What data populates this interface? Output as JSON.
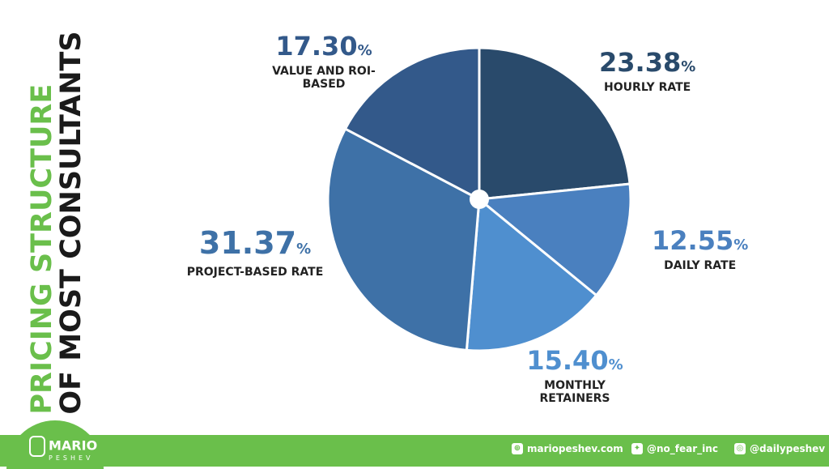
{
  "title": {
    "line1": "PRICING STRUCTURE",
    "line2": "OF MOST CONSULTANTS"
  },
  "chart_data": {
    "type": "pie",
    "start": "12 o'clock, clockwise",
    "slices": [
      {
        "label": "HOURLY RATE",
        "value": 23.38,
        "display": "23.38",
        "color": "#294a6b"
      },
      {
        "label": "DAILY RATE",
        "value": 12.55,
        "display": "12.55",
        "color": "#4a80bf"
      },
      {
        "label": "MONTHLY RETAINERS",
        "value": 15.4,
        "display": "15.40",
        "color": "#4f8fcf"
      },
      {
        "label": "PROJECT-BASED RATE",
        "value": 31.37,
        "display": "31.37",
        "color": "#3e71a7"
      },
      {
        "label": "VALUE AND ROI-BASED",
        "value": 17.3,
        "display": "17.30",
        "color": "#33598a"
      }
    ],
    "unit": "%"
  },
  "footer": {
    "brand": "MARIO",
    "brand_sub": "PESHEV",
    "website": "mariopeshev.com",
    "twitter": "@no_fear_inc",
    "instagram": "@dailypeshev",
    "color": "#6abf4b"
  }
}
